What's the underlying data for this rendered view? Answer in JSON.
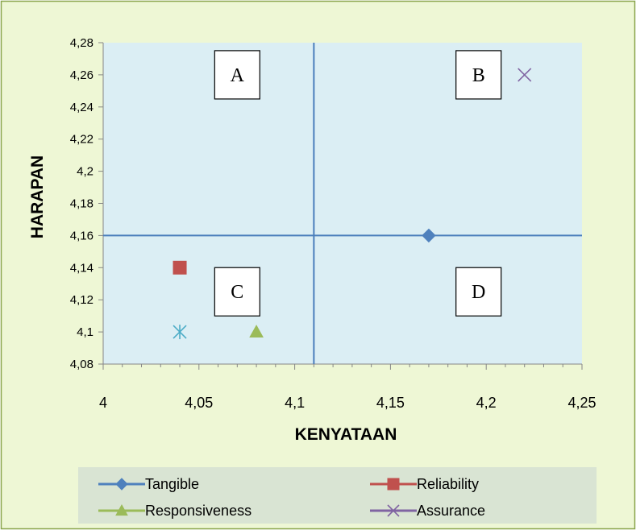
{
  "chart_data": {
    "type": "scatter",
    "title": "",
    "xlabel": "KENYATAAN",
    "ylabel": "HARAPAN",
    "xlim": [
      4,
      4.25
    ],
    "ylim": [
      4.08,
      4.28
    ],
    "x_ticks": [
      "4",
      "4,05",
      "4,1",
      "4,15",
      "4,2",
      "4,25"
    ],
    "y_ticks": [
      "4,08",
      "4,1",
      "4,12",
      "4,14",
      "4,16",
      "4,18",
      "4,2",
      "4,22",
      "4,24",
      "4,26",
      "4,28"
    ],
    "x_tick_values": [
      4,
      4.05,
      4.1,
      4.15,
      4.2,
      4.25
    ],
    "y_tick_values": [
      4.08,
      4.1,
      4.12,
      4.14,
      4.16,
      4.18,
      4.2,
      4.22,
      4.24,
      4.26,
      4.28
    ],
    "grid": false,
    "legend_position": "bottom",
    "divider_lines": {
      "x": 4.11,
      "y": 4.16
    },
    "quadrant_labels": [
      {
        "label": "A",
        "x": 4.07,
        "y": 4.26
      },
      {
        "label": "B",
        "x": 4.196,
        "y": 4.26
      },
      {
        "label": "C",
        "x": 4.07,
        "y": 4.125
      },
      {
        "label": "D",
        "x": 4.196,
        "y": 4.125
      }
    ],
    "series": [
      {
        "name": "Tangible",
        "marker": "diamond",
        "color": "#4f81bd",
        "x": [
          4.17
        ],
        "y": [
          4.16
        ]
      },
      {
        "name": "Reliability",
        "marker": "square",
        "color": "#c0504d",
        "x": [
          4.04
        ],
        "y": [
          4.14
        ]
      },
      {
        "name": "Responsiveness",
        "marker": "triangle",
        "color": "#9bbb59",
        "x": [
          4.08
        ],
        "y": [
          4.1
        ]
      },
      {
        "name": "Assurance",
        "marker": "x",
        "color": "#8064a2",
        "x": [
          4.22
        ],
        "y": [
          4.26
        ]
      },
      {
        "name": "",
        "marker": "star",
        "color": "#4bacc6",
        "x": [
          4.04
        ],
        "y": [
          4.1
        ]
      }
    ]
  },
  "colors": {
    "chart_background": "#eef7d5",
    "chart_border": "#8aa54c",
    "plot_background": "#dbeef4",
    "divider_line": "#4a7ebb",
    "legend_background": "#d9e4d3"
  }
}
